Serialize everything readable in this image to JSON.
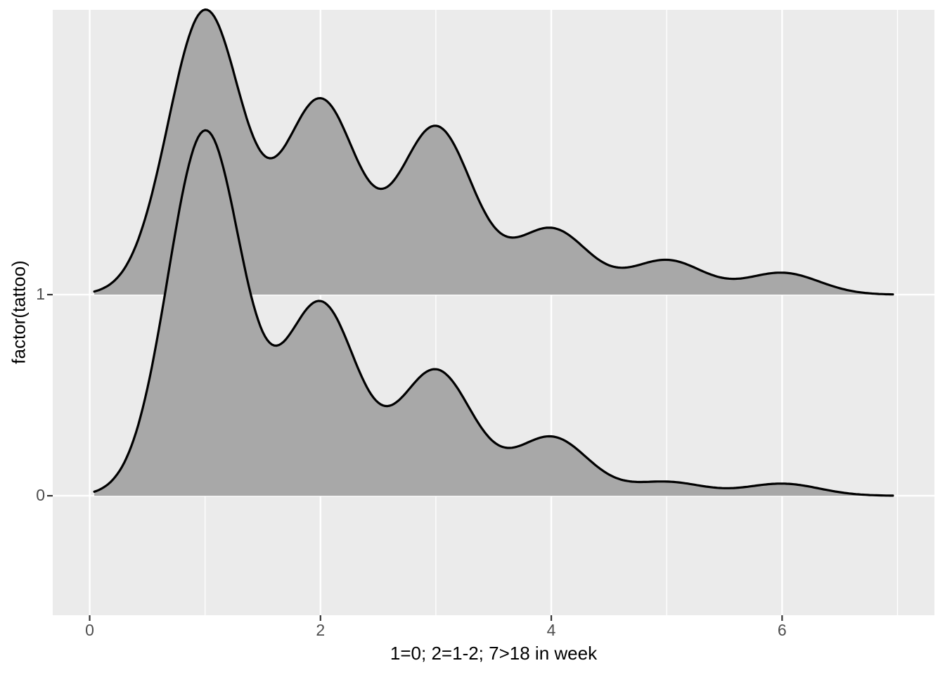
{
  "chart_data": {
    "type": "area",
    "subtype": "ridgeline-density",
    "title": "",
    "xlabel": "1=0; 2=1-2; 7>18 in week",
    "ylabel": "factor(tattoo)",
    "xlim": [
      -0.32,
      7.32
    ],
    "ylim": [
      -0.594,
      2.416
    ],
    "grid": {
      "x_major": [
        0,
        2,
        4,
        6
      ],
      "x_minor": [
        1,
        3,
        5,
        7
      ],
      "y_major": [
        0,
        1
      ]
    },
    "x_ticks": [
      {
        "value": 0,
        "label": "0"
      },
      {
        "value": 2,
        "label": "2"
      },
      {
        "value": 4,
        "label": "4"
      },
      {
        "value": 6,
        "label": "6"
      }
    ],
    "y_ticks": [
      {
        "value": 0,
        "label": "0"
      },
      {
        "value": 1,
        "label": "1"
      }
    ],
    "series": [
      {
        "name": "1",
        "position": 1,
        "range": [
          0.04,
          6.96
        ],
        "kde_sigma": 0.32,
        "components": [
          {
            "mu": 1,
            "amplitude": 1.41
          },
          {
            "mu": 2,
            "amplitude": 0.96
          },
          {
            "mu": 3,
            "amplitude": 0.83
          },
          {
            "mu": 4,
            "amplitude": 0.325
          },
          {
            "mu": 5,
            "amplitude": 0.17
          },
          {
            "mu": 6,
            "amplitude": 0.108
          }
        ]
      },
      {
        "name": "0",
        "position": 0,
        "range": [
          0.04,
          6.96
        ],
        "kde_sigma": 0.32,
        "components": [
          {
            "mu": 1,
            "amplitude": 1.81
          },
          {
            "mu": 2,
            "amplitude": 0.95
          },
          {
            "mu": 3,
            "amplitude": 0.62
          },
          {
            "mu": 4,
            "amplitude": 0.29
          },
          {
            "mu": 5,
            "amplitude": 0.068
          },
          {
            "mu": 6,
            "amplitude": 0.06
          }
        ]
      }
    ],
    "style": {
      "panel_bg": "#EBEBEB",
      "grid_color": "#FFFFFF",
      "fill": "#A8A8A8",
      "line": "#000000",
      "tick_color": "#333333",
      "tick_label_color": "#4D4D4D",
      "title_color": "#000000"
    }
  }
}
